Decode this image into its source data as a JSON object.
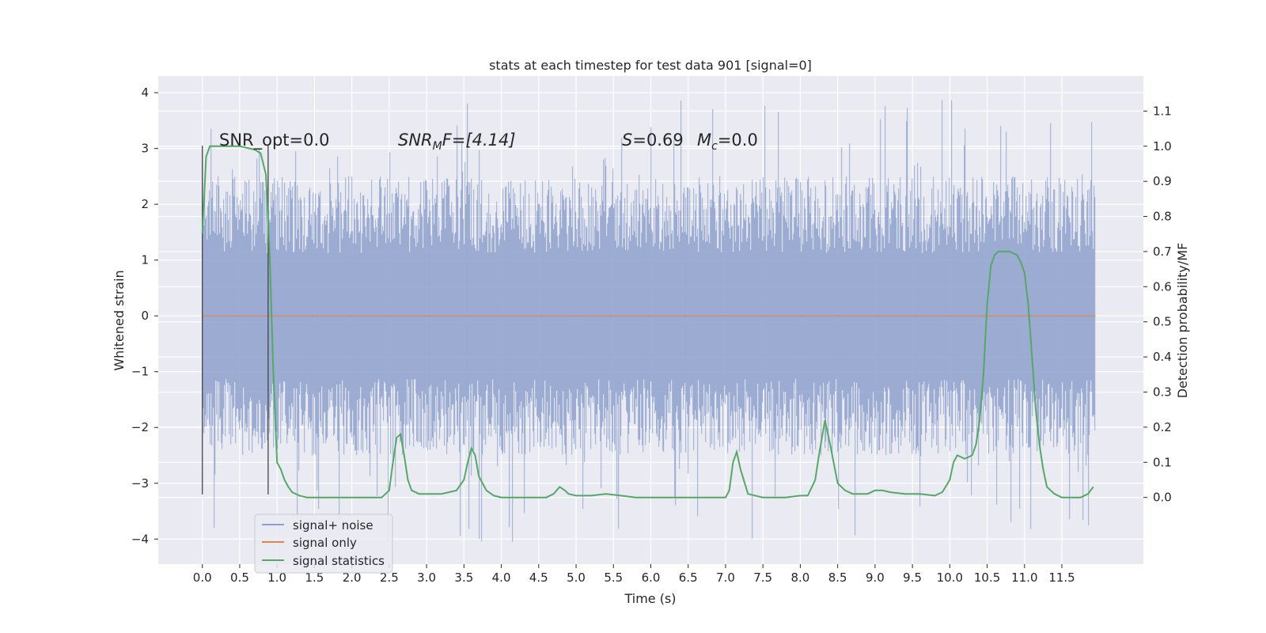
{
  "chart_data": {
    "type": "line",
    "title": "stats at each timestep for test data 901 [signal=0]",
    "xlabel": "Time (s)",
    "ylabel": "Whitened strain",
    "y2label": "Detection probability/MF",
    "xlim": [
      -0.59,
      12.59
    ],
    "ylim": [
      -4.45,
      4.3
    ],
    "y2lim": [
      -0.19,
      1.2
    ],
    "xticks": [
      0.0,
      0.5,
      1.0,
      1.5,
      2.0,
      2.5,
      3.0,
      3.5,
      4.0,
      4.5,
      5.0,
      5.5,
      6.0,
      6.5,
      7.0,
      7.5,
      8.0,
      8.5,
      9.0,
      9.5,
      10.0,
      10.5,
      11.0,
      11.5
    ],
    "xtick_labels": [
      "0.0",
      "0.5",
      "1.0",
      "1.5",
      "2.0",
      "2.5",
      "3.0",
      "3.5",
      "4.0",
      "4.5",
      "5.0",
      "5.5",
      "6.0",
      "6.5",
      "7.0",
      "7.5",
      "8.0",
      "8.5",
      "9.0",
      "9.5",
      "10.0",
      "10.5",
      "11.0",
      "11.5"
    ],
    "yticks": [
      -4,
      -3,
      -2,
      -1,
      0,
      1,
      2,
      3,
      4
    ],
    "ytick_labels": [
      "−4",
      "−3",
      "−2",
      "−1",
      "0",
      "1",
      "2",
      "3",
      "4"
    ],
    "y2ticks": [
      0.0,
      0.1,
      0.2,
      0.3,
      0.4,
      0.5,
      0.6,
      0.7,
      0.8,
      0.9,
      1.0,
      1.1
    ],
    "y2tick_labels": [
      "0.0",
      "0.1",
      "0.2",
      "0.3",
      "0.4",
      "0.5",
      "0.6",
      "0.7",
      "0.8",
      "0.9",
      "1.0",
      "1.1"
    ],
    "grid": true,
    "legend_placement": "lower-left",
    "annotations": {
      "snr_opt": "SNR_opt=0.0",
      "snr_mf_prefix": "SNR",
      "snr_mf_sub": "M",
      "snr_mf_suffix": "F=[4.14]",
      "s_label": "S",
      "s_value": "=0.69",
      "mc_label": "M",
      "mc_sub": "c",
      "mc_value": "=0.0"
    },
    "vertical_markers": [
      0.0,
      0.88
    ],
    "series": [
      {
        "name": "signal+ noise",
        "color": "#8da0cb",
        "axis": "left",
        "style": "noise-band",
        "x_range": [
          0.0,
          11.95
        ],
        "typical_range": [
          -2.5,
          2.5
        ],
        "extreme_range": [
          -4.1,
          3.9
        ]
      },
      {
        "name": "signal only",
        "color": "#dd8452",
        "axis": "left",
        "x": [
          0.0,
          11.95
        ],
        "y": [
          0.0,
          0.0
        ]
      },
      {
        "name": "signal statistics",
        "color": "#55a868",
        "axis": "right",
        "x": [
          0.0,
          0.05,
          0.1,
          0.15,
          0.2,
          0.3,
          0.5,
          0.7,
          0.78,
          0.85,
          0.9,
          0.95,
          1.0,
          1.05,
          1.1,
          1.15,
          1.2,
          1.3,
          1.4,
          1.6,
          2.0,
          2.4,
          2.5,
          2.55,
          2.6,
          2.65,
          2.7,
          2.75,
          2.8,
          2.9,
          3.0,
          3.2,
          3.4,
          3.5,
          3.55,
          3.6,
          3.65,
          3.7,
          3.8,
          3.9,
          4.0,
          4.3,
          4.6,
          4.7,
          4.78,
          4.85,
          4.9,
          5.0,
          5.2,
          5.4,
          5.6,
          5.8,
          6.5,
          7.0,
          7.05,
          7.1,
          7.15,
          7.2,
          7.3,
          7.5,
          7.8,
          8.0,
          8.1,
          8.2,
          8.25,
          8.33,
          8.4,
          8.5,
          8.6,
          8.7,
          8.8,
          8.9,
          9.0,
          9.1,
          9.2,
          9.4,
          9.6,
          9.8,
          9.9,
          10.0,
          10.05,
          10.1,
          10.2,
          10.3,
          10.35,
          10.4,
          10.45,
          10.5,
          10.55,
          10.6,
          10.65,
          10.7,
          10.8,
          10.9,
          10.95,
          11.0,
          11.05,
          11.1,
          11.15,
          11.2,
          11.25,
          11.3,
          11.4,
          11.5,
          11.6,
          11.75,
          11.85,
          11.92
        ],
        "y": [
          0.75,
          0.97,
          1.0,
          1.0,
          1.0,
          1.0,
          1.0,
          0.99,
          0.98,
          0.92,
          0.7,
          0.35,
          0.1,
          0.08,
          0.05,
          0.03,
          0.015,
          0.005,
          0.0,
          0.0,
          0.0,
          0.0,
          0.02,
          0.1,
          0.17,
          0.18,
          0.12,
          0.05,
          0.02,
          0.01,
          0.01,
          0.01,
          0.02,
          0.05,
          0.1,
          0.14,
          0.12,
          0.06,
          0.02,
          0.005,
          0.0,
          0.0,
          0.0,
          0.01,
          0.03,
          0.02,
          0.01,
          0.005,
          0.005,
          0.01,
          0.005,
          0.0,
          0.0,
          0.0,
          0.02,
          0.1,
          0.13,
          0.08,
          0.01,
          0.0,
          0.0,
          0.005,
          0.005,
          0.05,
          0.12,
          0.22,
          0.15,
          0.04,
          0.02,
          0.01,
          0.01,
          0.01,
          0.02,
          0.02,
          0.015,
          0.01,
          0.01,
          0.005,
          0.015,
          0.05,
          0.1,
          0.12,
          0.11,
          0.12,
          0.15,
          0.22,
          0.35,
          0.55,
          0.66,
          0.69,
          0.7,
          0.7,
          0.7,
          0.69,
          0.67,
          0.64,
          0.55,
          0.4,
          0.25,
          0.15,
          0.08,
          0.03,
          0.01,
          0.0,
          0.0,
          0.0,
          0.01,
          0.03
        ]
      }
    ]
  }
}
